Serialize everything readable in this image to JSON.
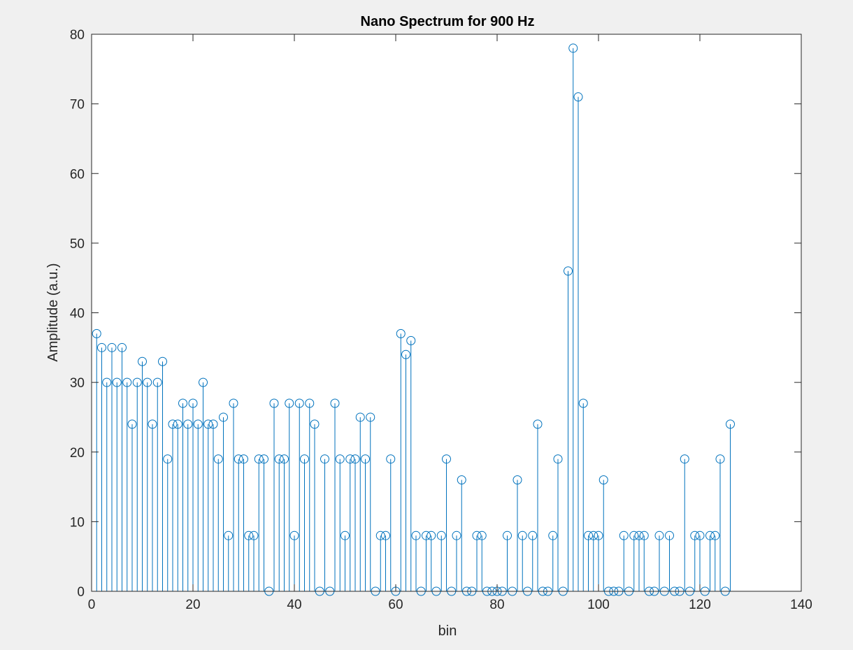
{
  "chart_data": {
    "type": "stem",
    "title": "Nano Spectrum for 900 Hz",
    "xlabel": "bin",
    "ylabel": "Amplitude (a.u.)",
    "xlim": [
      0,
      140
    ],
    "ylim": [
      0,
      80
    ],
    "xticks": [
      "0",
      "20",
      "40",
      "60",
      "80",
      "100",
      "120",
      "140"
    ],
    "yticks": [
      "0",
      "10",
      "20",
      "30",
      "40",
      "50",
      "60",
      "70",
      "80"
    ],
    "grid": false,
    "marker": "circle",
    "color": "#0072bd",
    "x": [
      1,
      2,
      3,
      4,
      5,
      6,
      7,
      8,
      9,
      10,
      11,
      12,
      13,
      14,
      15,
      16,
      17,
      18,
      19,
      20,
      21,
      22,
      23,
      24,
      25,
      26,
      27,
      28,
      29,
      30,
      31,
      32,
      33,
      34,
      35,
      36,
      37,
      38,
      39,
      40,
      41,
      42,
      43,
      44,
      45,
      46,
      47,
      48,
      49,
      50,
      51,
      52,
      53,
      54,
      55,
      56,
      57,
      58,
      59,
      60,
      61,
      62,
      63,
      64,
      65,
      66,
      67,
      68,
      69,
      70,
      71,
      72,
      73,
      74,
      75,
      76,
      77,
      78,
      79,
      80,
      81,
      82,
      83,
      84,
      85,
      86,
      87,
      88,
      89,
      90,
      91,
      92,
      93,
      94,
      95,
      96,
      97,
      98,
      99,
      100,
      101,
      102,
      103,
      104,
      105,
      106,
      107,
      108,
      109,
      110,
      111,
      112,
      113,
      114,
      115,
      116,
      117,
      118,
      119,
      120,
      121,
      122,
      123,
      124,
      125,
      126
    ],
    "values": [
      37,
      35,
      30,
      35,
      30,
      35,
      30,
      24,
      30,
      33,
      30,
      24,
      30,
      33,
      19,
      24,
      24,
      27,
      24,
      27,
      24,
      30,
      24,
      24,
      19,
      25,
      8,
      27,
      19,
      19,
      8,
      8,
      19,
      19,
      0,
      27,
      19,
      19,
      27,
      8,
      27,
      19,
      27,
      24,
      0,
      19,
      0,
      27,
      19,
      8,
      19,
      19,
      25,
      19,
      25,
      0,
      8,
      8,
      19,
      0,
      37,
      34,
      36,
      8,
      0,
      8,
      8,
      0,
      8,
      19,
      0,
      8,
      16,
      0,
      0,
      8,
      8,
      0,
      0,
      0,
      0,
      8,
      0,
      16,
      8,
      0,
      8,
      24,
      0,
      0,
      8,
      19,
      0,
      46,
      78,
      71,
      27,
      8,
      8,
      8,
      16,
      0,
      0,
      0,
      8,
      0,
      8,
      8,
      8,
      0,
      0,
      8,
      0,
      8,
      0,
      0,
      19,
      0,
      8,
      8,
      0,
      8,
      8,
      19,
      0,
      24
    ]
  }
}
